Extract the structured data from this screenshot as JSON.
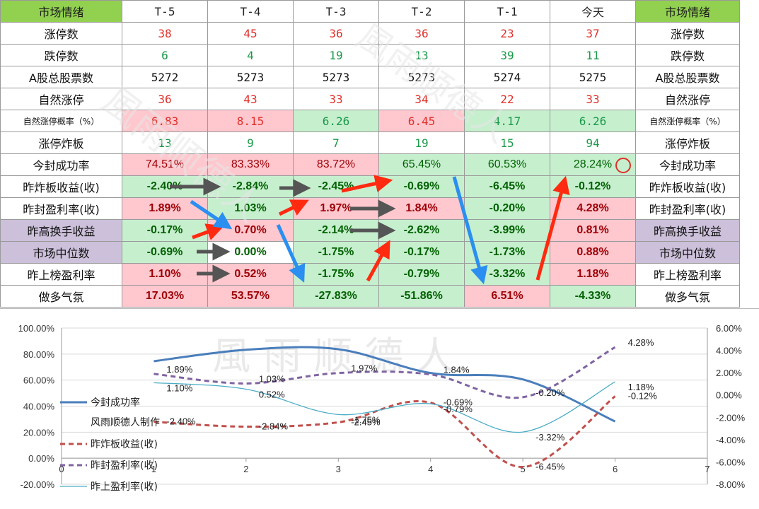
{
  "table": {
    "header": [
      "市场情绪",
      "T-5",
      "T-4",
      "T-3",
      "T-2",
      "T-1",
      "今天",
      "市场情绪"
    ],
    "rows": [
      {
        "label": "涨停数",
        "small": false,
        "purple": false,
        "type": "num",
        "vals": [
          "38",
          "45",
          "36",
          "36",
          "23",
          "37"
        ],
        "colors": [
          "red",
          "red",
          "red",
          "red",
          "red",
          "red"
        ],
        "bgs": [
          "",
          "",
          "",
          "",
          "",
          ""
        ]
      },
      {
        "label": "跌停数",
        "small": false,
        "purple": false,
        "type": "num",
        "vals": [
          "6",
          "4",
          "19",
          "13",
          "39",
          "11"
        ],
        "colors": [
          "green",
          "green",
          "green",
          "green",
          "green",
          "green"
        ],
        "bgs": [
          "",
          "",
          "",
          "",
          "",
          ""
        ]
      },
      {
        "label": "A股总股票数",
        "small": false,
        "purple": false,
        "type": "num",
        "vals": [
          "5272",
          "5273",
          "5273",
          "5273",
          "5274",
          "5275"
        ],
        "colors": [
          "dark",
          "dark",
          "dark",
          "dark",
          "dark",
          "dark"
        ],
        "bgs": [
          "",
          "",
          "",
          "",
          "",
          ""
        ]
      },
      {
        "label": "自然涨停",
        "small": false,
        "purple": false,
        "type": "num",
        "vals": [
          "36",
          "43",
          "33",
          "34",
          "22",
          "33"
        ],
        "colors": [
          "red",
          "red",
          "red",
          "red",
          "red",
          "red"
        ],
        "bgs": [
          "",
          "",
          "",
          "",
          "",
          ""
        ]
      },
      {
        "label": "自然涨停概率（%）",
        "small": true,
        "purple": false,
        "type": "num",
        "vals": [
          "6.83",
          "8.15",
          "6.26",
          "6.45",
          "4.17",
          "6.26"
        ],
        "colors": [
          "red",
          "red",
          "green",
          "red",
          "green",
          "green"
        ],
        "bgs": [
          "bgr",
          "bgr",
          "bgg",
          "bgr",
          "bgg",
          "bgg"
        ]
      },
      {
        "label": "涨停炸板",
        "small": false,
        "purple": false,
        "type": "num",
        "vals": [
          "13",
          "9",
          "7",
          "19",
          "15",
          "94"
        ],
        "colors": [
          "green",
          "green",
          "green",
          "green",
          "green",
          "green"
        ],
        "bgs": [
          "",
          "",
          "",
          "",
          "",
          ""
        ]
      },
      {
        "label": "今封成功率",
        "small": false,
        "purple": false,
        "type": "pctn",
        "vals": [
          "74.51%",
          "83.33%",
          "83.72%",
          "65.45%",
          "60.53%",
          "28.24%"
        ],
        "colors": [
          "dr",
          "dr",
          "dr",
          "dg",
          "dg",
          "dg"
        ],
        "bgs": [
          "bgr",
          "bgr",
          "bgr",
          "bgg",
          "bgg",
          "bgg"
        ]
      },
      {
        "label": "昨炸板收益(收)",
        "small": false,
        "purple": false,
        "type": "pct",
        "vals": [
          "-2.40%",
          "-2.84%",
          "-2.45%",
          "-0.69%",
          "-6.45%",
          "-0.12%"
        ],
        "colors": [
          "dg",
          "dg",
          "dg",
          "dg",
          "dg",
          "dg"
        ],
        "bgs": [
          "bgg",
          "bgg",
          "bgg",
          "bgg",
          "bgg",
          "bgg"
        ]
      },
      {
        "label": "昨封盈利率(收)",
        "small": false,
        "purple": false,
        "type": "pct",
        "vals": [
          "1.89%",
          "1.03%",
          "1.97%",
          "1.84%",
          "-0.20%",
          "4.28%"
        ],
        "colors": [
          "dr",
          "dg",
          "dr",
          "dr",
          "dg",
          "dr"
        ],
        "bgs": [
          "bgr",
          "bgg",
          "bgr",
          "bgr",
          "bgg",
          "bgr"
        ]
      },
      {
        "label": "昨高换手收益",
        "small": false,
        "purple": true,
        "type": "pct",
        "vals": [
          "-0.17%",
          "0.70%",
          "-2.14%",
          "-2.62%",
          "-3.99%",
          "0.81%"
        ],
        "colors": [
          "dg",
          "dr",
          "dg",
          "dg",
          "dg",
          "dr"
        ],
        "bgs": [
          "bgg",
          "bgr",
          "bgg",
          "bgg",
          "bgg",
          "bgr"
        ]
      },
      {
        "label": "市场中位数",
        "small": false,
        "purple": true,
        "type": "pct",
        "vals": [
          "-0.69%",
          "0.00%",
          "-1.75%",
          "-0.17%",
          "-1.73%",
          "0.88%"
        ],
        "colors": [
          "dg",
          "dg",
          "dg",
          "dg",
          "dg",
          "dr"
        ],
        "bgs": [
          "bgg",
          "",
          "bgg",
          "bgg",
          "bgg",
          "bgr"
        ]
      },
      {
        "label": "昨上榜盈利率",
        "small": false,
        "purple": false,
        "type": "pct",
        "vals": [
          "1.10%",
          "0.52%",
          "-1.75%",
          "-0.79%",
          "-3.32%",
          "1.18%"
        ],
        "colors": [
          "dr",
          "dr",
          "dg",
          "dg",
          "dg",
          "dr"
        ],
        "bgs": [
          "bgr",
          "bgr",
          "bgg",
          "bgg",
          "bgg",
          "bgr"
        ]
      },
      {
        "label": "做多气氛",
        "small": false,
        "purple": false,
        "type": "pct",
        "vals": [
          "17.03%",
          "53.57%",
          "-27.83%",
          "-51.86%",
          "6.51%",
          "-4.33%"
        ],
        "colors": [
          "dr",
          "dr",
          "dg",
          "dg",
          "dr",
          "dg"
        ],
        "bgs": [
          "bgr",
          "bgr",
          "bgg",
          "bgg",
          "bgr",
          "bgg"
        ]
      }
    ]
  },
  "watermark": "風雨顺德人",
  "chart_data": {
    "type": "line",
    "x": [
      1,
      2,
      3,
      4,
      5,
      6
    ],
    "xlim": [
      0,
      7
    ],
    "xticks": [
      "0",
      "1",
      "2",
      "3",
      "4",
      "5",
      "6",
      "7"
    ],
    "ylim_left": [
      -20,
      100
    ],
    "yticks_left": [
      "100.00%",
      "80.00%",
      "60.00%",
      "40.00%",
      "20.00%",
      "0.00%",
      "-20.00%"
    ],
    "ylim_right": [
      -8,
      6
    ],
    "yticks_right": [
      "6.00%",
      "4.00%",
      "2.00%",
      "0.00%",
      "-2.00%",
      "-4.00%",
      "-6.00%",
      "-8.00%"
    ],
    "series": [
      {
        "name": "今封成功率",
        "axis": "left",
        "style": "solid",
        "color": "#4a7ebb",
        "width": 3,
        "values": [
          74.51,
          83.33,
          83.72,
          65.45,
          60.53,
          28.24
        ],
        "labels": []
      },
      {
        "name": "昨炸板收益(收)",
        "axis": "right",
        "style": "dashed",
        "color": "#c0504d",
        "width": 3,
        "values": [
          -2.4,
          -2.84,
          -2.45,
          -0.69,
          -6.45,
          -0.12
        ],
        "labels": [
          "-2.40%",
          "-2.84%",
          "-2.45%",
          "-0.69%",
          "-6.45%",
          "-0.12%"
        ]
      },
      {
        "name": "昨封盈利率(收)",
        "axis": "right",
        "style": "dashed",
        "color": "#8064a2",
        "width": 3,
        "values": [
          1.89,
          1.03,
          1.97,
          1.84,
          -0.2,
          4.28
        ],
        "labels": [
          "1.89%",
          "1.03%",
          "1.97%",
          "1.84%",
          "-0.20%",
          "4.28%"
        ]
      },
      {
        "name": "昨上盈利率(收)",
        "axis": "right",
        "style": "solid",
        "color": "#4bacc6",
        "width": 1.3,
        "values": [
          1.1,
          0.52,
          -1.75,
          -0.79,
          -3.32,
          1.18
        ],
        "labels": [
          "1.10%",
          "0.52%",
          "-1.75%",
          "-0.79%",
          "-3.32%",
          "1.18%"
        ]
      }
    ],
    "legend_extra": "风雨顺德人制作"
  }
}
